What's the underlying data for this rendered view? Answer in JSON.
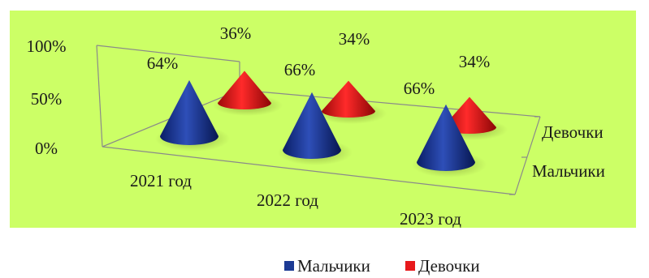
{
  "chart_data": {
    "type": "3d-cone",
    "categories": [
      "2021 год",
      "2022 год",
      "2023 год"
    ],
    "series": [
      {
        "name": "Мальчики",
        "values": [
          64,
          66,
          66
        ],
        "color": "#1c3a94"
      },
      {
        "name": "Девочки",
        "values": [
          36,
          34,
          34
        ],
        "color": "#e8191c"
      }
    ],
    "data_labels": {
      "Мальчики": [
        "64%",
        "66%",
        "66%"
      ],
      "Девочки": [
        "36%",
        "34%",
        "34%"
      ]
    },
    "y_ticks": [
      "0%",
      "50%",
      "100%"
    ],
    "ylim": [
      0,
      100
    ],
    "legend": {
      "position": "bottom",
      "entries": [
        "Мальчики",
        "Девочки"
      ]
    },
    "plot_background": "#ccff66"
  }
}
